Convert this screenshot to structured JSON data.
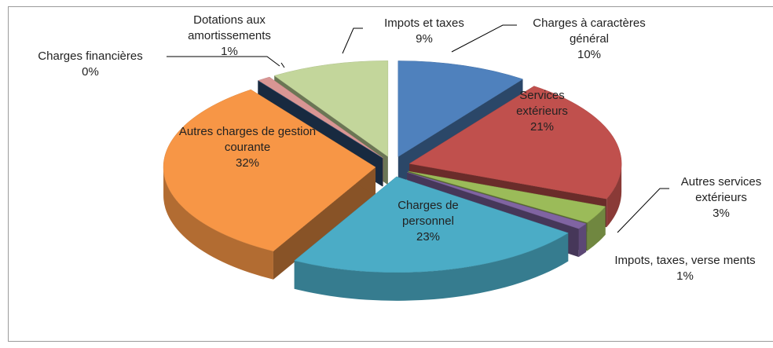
{
  "chart_data": {
    "type": "pie3d",
    "categories": [
      "Charges à caractères général",
      "Services extérieurs",
      "Autres services extérieurs",
      "Impots, taxes, verse ments",
      "Charges de personnel",
      "Autres charges de gestion courante",
      "Charges financières",
      "Dotations aux amortissements",
      "Impots et taxes"
    ],
    "values": [
      10,
      21,
      3,
      1,
      23,
      32,
      0,
      1,
      9
    ],
    "value_labels": [
      "10%",
      "21%",
      "3%",
      "1%",
      "23%",
      "32%",
      "0%",
      "1%",
      "9%"
    ],
    "colors": [
      "#4f81bd",
      "#c0504d",
      "#9bbb59",
      "#8064a2",
      "#4bacc6",
      "#f79646",
      "#2c4d75",
      "#d99694",
      "#c3d69b"
    ]
  }
}
